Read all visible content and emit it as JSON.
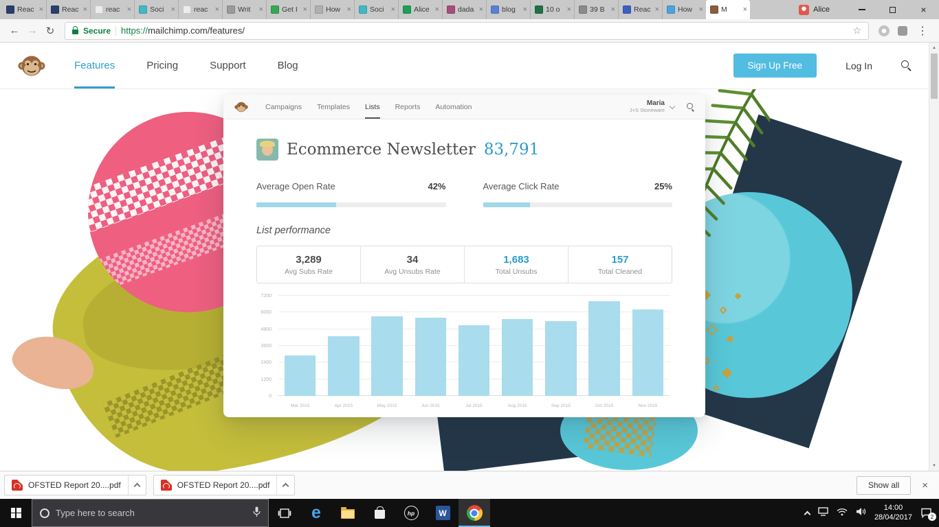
{
  "colors": {
    "accent_blue": "#2b9cc8",
    "nav_active_blue": "#2f9fd0",
    "signup_button": "#52bce1",
    "secure_green": "#0b8043",
    "progress_fill": "#9fd8e8",
    "bar_fill": "#a9dcec",
    "shape_pink": "#ee5f80",
    "shape_yellow": "#c5be3b",
    "shape_navy": "#233749",
    "shape_teal": "#58c8d9",
    "shape_palm_green": "#5d9130",
    "shape_gold": "#c7a23f"
  },
  "browser": {
    "tabs": [
      {
        "title": "Reac",
        "favicon_color": "#2c3e6b"
      },
      {
        "title": "Reac",
        "favicon_color": "#2c3e6b"
      },
      {
        "title": "reac",
        "favicon_color": "#ececec"
      },
      {
        "title": "Soci",
        "favicon_color": "#43b7c4"
      },
      {
        "title": "reac",
        "favicon_color": "#ececec"
      },
      {
        "title": "Writ",
        "favicon_color": "#9a9a9a"
      },
      {
        "title": "Get I",
        "favicon_color": "#34a853"
      },
      {
        "title": "How",
        "favicon_color": "#b0b0b0"
      },
      {
        "title": "Soci",
        "favicon_color": "#43b7c4"
      },
      {
        "title": "Alice",
        "favicon_color": "#1e9e5a"
      },
      {
        "title": "dada",
        "favicon_color": "#a64d79"
      },
      {
        "title": "blog",
        "favicon_color": "#5b7fd4"
      },
      {
        "title": "10 o",
        "favicon_color": "#1e7145"
      },
      {
        "title": "39 B",
        "favicon_color": "#8a8a8a"
      },
      {
        "title": "Reac",
        "favicon_color": "#3b5fc0"
      },
      {
        "title": "How",
        "favicon_color": "#4aa3df"
      },
      {
        "title": "M",
        "favicon_color": "#8a5d3b",
        "active": true
      }
    ],
    "profile_name": "Alice",
    "address_bar": {
      "secure_label": "Secure",
      "url_scheme": "https://",
      "url_rest": "mailchimp.com/features/"
    }
  },
  "site_header": {
    "nav": [
      {
        "label": "Features",
        "active": true
      },
      {
        "label": "Pricing"
      },
      {
        "label": "Support"
      },
      {
        "label": "Blog"
      }
    ],
    "signup_label": "Sign Up Free",
    "login_label": "Log In"
  },
  "dashboard": {
    "nav": [
      {
        "label": "Campaigns"
      },
      {
        "label": "Templates"
      },
      {
        "label": "Lists",
        "active": true
      },
      {
        "label": "Reports"
      },
      {
        "label": "Automation"
      }
    ],
    "user_name": "Maria",
    "user_company": "J+S Stoneware",
    "title": "Ecommerce Newsletter",
    "subscriber_count": "83,791",
    "metrics": [
      {
        "label": "Average Open Rate",
        "value": "42%",
        "percent": 42
      },
      {
        "label": "Average Click Rate",
        "value": "25%",
        "percent": 25
      }
    ],
    "section_title": "List performance",
    "stats": [
      {
        "value": "3,289",
        "label": "Avg Subs Rate",
        "highlight": false
      },
      {
        "value": "34",
        "label": "Avg Unsubs Rate",
        "highlight": false
      },
      {
        "value": "1,683",
        "label": "Total Unsubs",
        "highlight": true
      },
      {
        "value": "157",
        "label": "Total Cleaned",
        "highlight": true
      }
    ]
  },
  "chart_data": {
    "type": "bar",
    "categories": [
      "Mar 2015",
      "Apr 2015",
      "May 2015",
      "Jun 2015",
      "Jul 2015",
      "Aug 2015",
      "Sep 2015",
      "Oct 2015",
      "Nov 2015"
    ],
    "values": [
      2900,
      4300,
      5700,
      5600,
      5100,
      5500,
      5400,
      6800,
      6200
    ],
    "ylim": [
      0,
      7200
    ],
    "yticks": [
      0,
      1200,
      2400,
      3600,
      4800,
      6000,
      7200
    ],
    "grid": true,
    "bar_color": "#a9dcec",
    "legend": null,
    "title": "",
    "xlabel": "",
    "ylabel": ""
  },
  "downloads": {
    "items": [
      {
        "name": "OFSTED Report 20....pdf"
      },
      {
        "name": "OFSTED Report 20....pdf"
      }
    ],
    "show_all_label": "Show all"
  },
  "taskbar": {
    "search_placeholder": "Type here to search",
    "clock_time": "14:00",
    "clock_date": "28/04/2017",
    "notification_badge": "2"
  }
}
